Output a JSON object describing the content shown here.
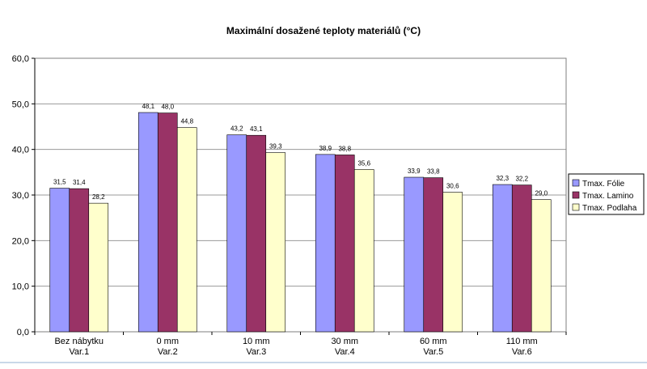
{
  "chart_data": {
    "type": "bar",
    "title": "Maximální dosažené teploty materiálů (°C)",
    "xlabel": "",
    "ylabel": "",
    "ylim": [
      0,
      60
    ],
    "yticks": [
      "0,0",
      "10,0",
      "20,0",
      "30,0",
      "40,0",
      "50,0",
      "60,0"
    ],
    "grid": true,
    "legend_position": "right",
    "categories": [
      [
        "Bez nábytku",
        "Var.1"
      ],
      [
        "0 mm",
        "Var.2"
      ],
      [
        "10 mm",
        "Var.3"
      ],
      [
        "30 mm",
        "Var.4"
      ],
      [
        "60 mm",
        "Var.5"
      ],
      [
        "110 mm",
        "Var.6"
      ]
    ],
    "series": [
      {
        "name": "Tmax. Fólie",
        "color": "#9999ff",
        "values": [
          31.5,
          48.1,
          43.2,
          38.9,
          33.9,
          32.3
        ],
        "labels": [
          "31,5",
          "48,1",
          "43,2",
          "38,9",
          "33,9",
          "32,3"
        ]
      },
      {
        "name": "Tmax. Lamino",
        "color": "#993366",
        "values": [
          31.4,
          48.0,
          43.1,
          38.8,
          33.8,
          32.2
        ],
        "labels": [
          "31,4",
          "48,0",
          "43,1",
          "38,8",
          "33,8",
          "32,2"
        ]
      },
      {
        "name": "Tmax. Podlaha",
        "color": "#ffffcc",
        "values": [
          28.2,
          44.8,
          39.3,
          35.6,
          30.6,
          29.0
        ],
        "labels": [
          "28,2",
          "44,8",
          "39,3",
          "35,6",
          "30,6",
          "29,0"
        ]
      }
    ]
  }
}
